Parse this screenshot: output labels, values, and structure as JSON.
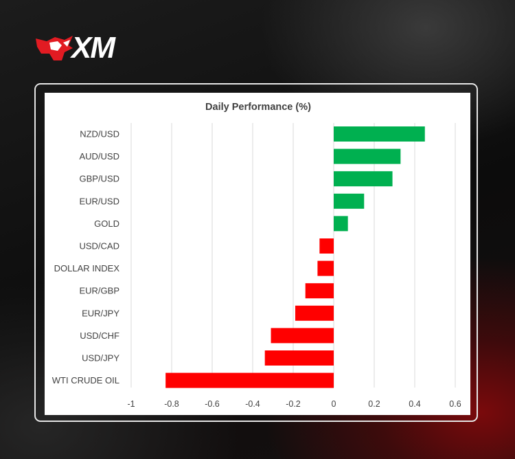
{
  "brand": {
    "name": "XM",
    "accent_color": "#e21b22"
  },
  "chart_data": {
    "type": "bar",
    "orientation": "horizontal",
    "title": "Daily Performance (%)",
    "categories": [
      "NZD/USD",
      "AUD/USD",
      "GBP/USD",
      "EUR/USD",
      "GOLD",
      "USD/CAD",
      "DOLLAR INDEX",
      "EUR/GBP",
      "EUR/JPY",
      "USD/CHF",
      "USD/JPY",
      "WTI CRUDE OIL"
    ],
    "values": [
      0.45,
      0.33,
      0.29,
      0.15,
      0.07,
      -0.07,
      -0.08,
      -0.14,
      -0.19,
      -0.31,
      -0.34,
      -0.83
    ],
    "xlim": [
      -1,
      0.6
    ],
    "xticks": [
      -1,
      -0.8,
      -0.6,
      -0.4,
      -0.2,
      0,
      0.2,
      0.4,
      0.6
    ],
    "xtick_labels": [
      "-1",
      "-0.8",
      "-0.6",
      "-0.4",
      "-0.2",
      "0",
      "0.2",
      "0.4",
      "0.6"
    ],
    "grid": "vertical",
    "legend": "none",
    "positive_color": "#00b050",
    "negative_color": "#ff0000"
  }
}
